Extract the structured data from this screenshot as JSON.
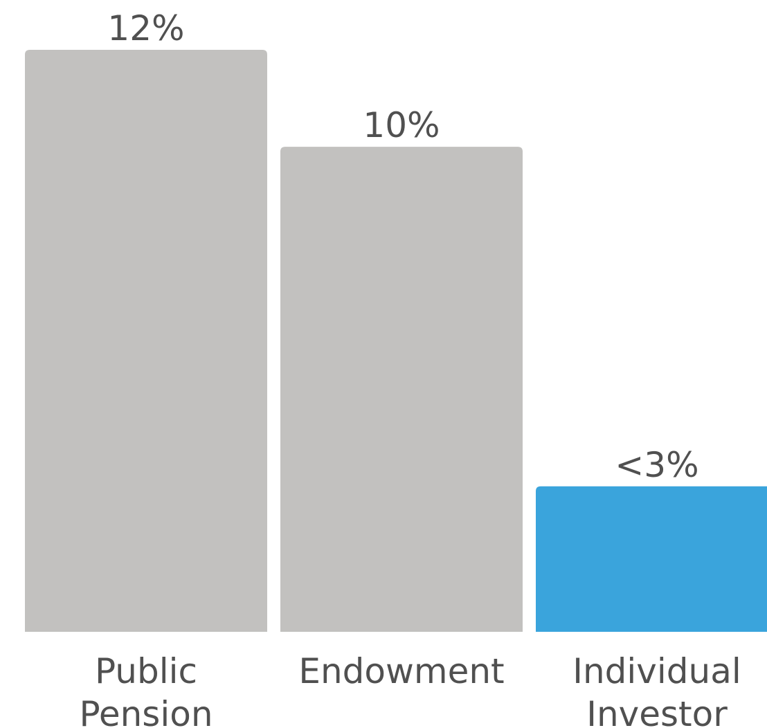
{
  "chart_data": {
    "type": "bar",
    "categories": [
      "Public Pension",
      "Endowment",
      "Individual Investor"
    ],
    "category_label_lines": [
      [
        "Public",
        "Pension"
      ],
      [
        "Endowment"
      ],
      [
        "Individual",
        "Investor"
      ]
    ],
    "values": [
      12,
      10,
      3
    ],
    "data_labels": [
      "12%",
      "10%",
      "<3%"
    ],
    "value_unit": "%",
    "ylim": [
      0,
      12
    ],
    "grid": false,
    "legend": "none",
    "colors": [
      "#c2c1bf",
      "#c2c1bf",
      "#3aa4dc"
    ],
    "label_color": "#505050",
    "title": "",
    "xlabel": "",
    "ylabel": ""
  }
}
